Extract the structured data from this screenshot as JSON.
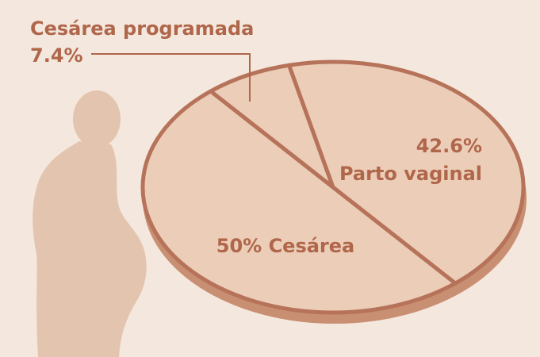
{
  "chart_data": {
    "type": "pie",
    "categories": [
      "Cesárea",
      "Cesárea programada",
      "Parto vaginal"
    ],
    "values": [
      50,
      7.4,
      42.6
    ],
    "value_labels": [
      "50%",
      "7.4%",
      "42.6%"
    ],
    "colors": [
      "#ebcdb8",
      "#ebcdb8",
      "#ebcdb8"
    ]
  }
}
